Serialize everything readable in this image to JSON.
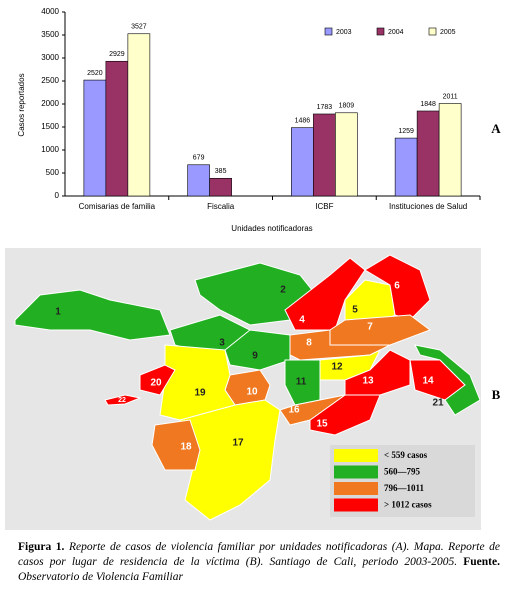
{
  "chart_data": {
    "type": "bar",
    "categories": [
      "Comisarias de familia",
      "Fiscalia",
      "ICBF",
      "Instituciones de Salud"
    ],
    "series": [
      {
        "name": "2003",
        "color": "#9999ff",
        "values": [
          2520,
          679,
          1486,
          1259
        ]
      },
      {
        "name": "2004",
        "color": "#993366",
        "values": [
          2929,
          385,
          1783,
          1848
        ]
      },
      {
        "name": "2005",
        "color": "#ffffcc",
        "values": [
          3527,
          null,
          1809,
          2011
        ]
      }
    ],
    "ylabel": "Casos reportados",
    "xlabel": "Unidades notificadoras",
    "ylim": [
      0,
      4000
    ],
    "yticks": [
      0,
      500,
      1000,
      1500,
      2000,
      2500,
      3000,
      3500,
      4000
    ],
    "grid": false,
    "legend": "top-right"
  },
  "panels": {
    "a": "A",
    "b": "B"
  },
  "map": {
    "regions": [
      "1",
      "2",
      "3",
      "4",
      "5",
      "6",
      "7",
      "8",
      "9",
      "10",
      "11",
      "12",
      "13",
      "14",
      "15",
      "16",
      "17",
      "18",
      "19",
      "20",
      "21",
      "22"
    ],
    "legend": [
      "< 559 casos",
      "560—795",
      "796—1011",
      "> 1012 casos"
    ]
  },
  "caption": {
    "label": "Figura 1.",
    "text": "Reporte de casos de violencia familiar por unidades notificadoras (A). Mapa. Reporte de casos por lugar de residencia de la víctima (B). Santiago de Cali, periodo 2003-2005.",
    "source_label": "Fuente.",
    "source": "Observatorio de Violencia Familiar"
  }
}
